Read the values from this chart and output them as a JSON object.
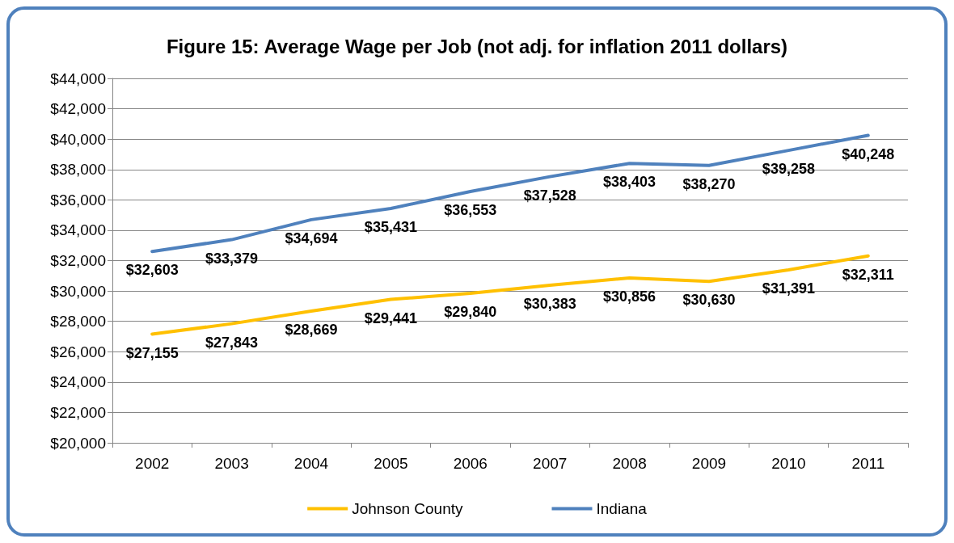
{
  "chart_data": {
    "type": "line",
    "title": "Figure 15: Average Wage per Job (not adj. for inflation 2011 dollars)",
    "categories": [
      "2002",
      "2003",
      "2004",
      "2005",
      "2006",
      "2007",
      "2008",
      "2009",
      "2010",
      "2011"
    ],
    "series": [
      {
        "name": "Johnson County",
        "color": "#ffc000",
        "values": [
          27155,
          27843,
          28669,
          29441,
          29840,
          30383,
          30856,
          30630,
          31391,
          32311
        ],
        "value_labels": [
          "$27,155",
          "$27,843",
          "$28,669",
          "$29,441",
          "$29,840",
          "$30,383",
          "$30,856",
          "$30,630",
          "$31,391",
          "$32,311"
        ]
      },
      {
        "name": "Indiana",
        "color": "#4f81bd",
        "values": [
          32603,
          33379,
          34694,
          35431,
          36553,
          37528,
          38403,
          38270,
          39258,
          40248
        ],
        "value_labels": [
          "$32,603",
          "$33,379",
          "$34,694",
          "$35,431",
          "$36,553",
          "$37,528",
          "$38,403",
          "$38,270",
          "$39,258",
          "$40,248"
        ]
      }
    ],
    "ylim": [
      20000,
      44000
    ],
    "yticks": [
      {
        "value": 20000,
        "label": "$20,000"
      },
      {
        "value": 22000,
        "label": "$22,000"
      },
      {
        "value": 24000,
        "label": "$24,000"
      },
      {
        "value": 26000,
        "label": "$26,000"
      },
      {
        "value": 28000,
        "label": "$28,000"
      },
      {
        "value": 30000,
        "label": "$30,000"
      },
      {
        "value": 32000,
        "label": "$32,000"
      },
      {
        "value": 34000,
        "label": "$34,000"
      },
      {
        "value": 36000,
        "label": "$36,000"
      },
      {
        "value": 38000,
        "label": "$38,000"
      },
      {
        "value": 40000,
        "label": "$40,000"
      },
      {
        "value": 42000,
        "label": "$42,000"
      },
      {
        "value": 44000,
        "label": "$44,000"
      }
    ],
    "grid": "y",
    "legend": "bottom",
    "marker": "none",
    "line_style": "solid"
  }
}
